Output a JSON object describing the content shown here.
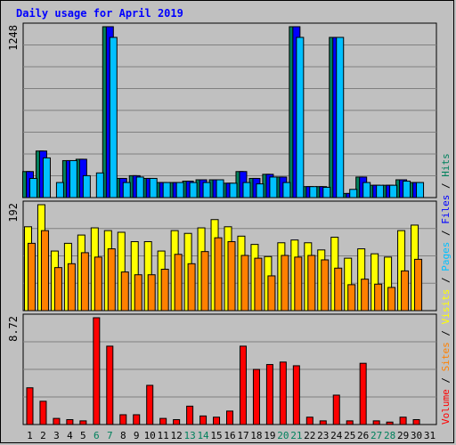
{
  "chart_data": {
    "type": "bar",
    "title": "Daily usage for April 2019",
    "categories": [
      "1",
      "2",
      "3",
      "4",
      "5",
      "6",
      "7",
      "8",
      "9",
      "10",
      "11",
      "12",
      "13",
      "14",
      "15",
      "16",
      "17",
      "18",
      "19",
      "20",
      "21",
      "22",
      "23",
      "24",
      "25",
      "26",
      "27",
      "28",
      "29",
      "30",
      "31"
    ],
    "weekend_days": [
      "6",
      "7",
      "13",
      "14",
      "20",
      "21",
      "27",
      "28"
    ],
    "colors": {
      "hits": "#00805c",
      "files": "#0000ff",
      "pages": "#00c0ff",
      "visits": "#ffff00",
      "sites": "#ff8000",
      "volume": "#ff0000",
      "weekday_label": "#000000",
      "weekend_label": "#00805c",
      "title": "#0000ff"
    },
    "panels": [
      {
        "name": "hits-files-pages",
        "max_label": "1248",
        "ymax": 1248,
        "series": [
          {
            "name": "Hits",
            "values": [
              190,
              340,
              0,
              270,
              280,
              0,
              1248,
              140,
              160,
              140,
              110,
              110,
              120,
              130,
              130,
              105,
              190,
              140,
              170,
              150,
              1248,
              80,
              80,
              1170,
              30,
              150,
              90,
              90,
              130,
              110,
              0
            ]
          },
          {
            "name": "Files",
            "values": [
              190,
              340,
              0,
              270,
              280,
              0,
              1248,
              140,
              160,
              140,
              110,
              110,
              120,
              130,
              130,
              105,
              190,
              140,
              170,
              150,
              1248,
              80,
              80,
              1170,
              30,
              150,
              90,
              90,
              130,
              110,
              0
            ]
          },
          {
            "name": "Pages",
            "values": [
              140,
              290,
              110,
              270,
              160,
              180,
              1170,
              110,
              150,
              140,
              110,
              110,
              110,
              110,
              130,
              105,
              110,
              100,
              150,
              110,
              1170,
              80,
              75,
              1170,
              60,
              110,
              90,
              90,
              120,
              110,
              0
            ]
          }
        ]
      },
      {
        "name": "visits-sites",
        "max_label": "192",
        "ymax": 192,
        "series": [
          {
            "name": "Visits",
            "values": [
              152,
              192,
              108,
              122,
              137,
              150,
              145,
              142,
              125,
              125,
              108,
              145,
              140,
              150,
              165,
              152,
              135,
              120,
              98,
              123,
              128,
              123,
              110,
              133,
              95,
              112,
              103,
              97,
              145,
              155,
              0
            ]
          },
          {
            "name": "Sites",
            "values": [
              122,
              145,
              78,
              85,
              105,
              97,
              112,
              70,
              65,
              65,
              75,
              102,
              85,
              107,
              132,
              125,
              100,
              95,
              63,
              100,
              97,
              100,
              92,
              77,
              47,
              57,
              48,
              42,
              72,
              93,
              0
            ]
          }
        ]
      },
      {
        "name": "volume",
        "max_label": "8.72",
        "ymax": 8.72,
        "series": [
          {
            "name": "Volume",
            "values": [
              3.0,
              1.9,
              0.5,
              0.4,
              0.3,
              8.72,
              6.4,
              0.8,
              0.8,
              3.2,
              0.5,
              0.4,
              1.5,
              0.7,
              0.6,
              1.1,
              6.4,
              4.5,
              4.9,
              5.1,
              4.8,
              0.6,
              0.3,
              2.4,
              0.3,
              5.0,
              0.3,
              0.2,
              0.6,
              0.4,
              0.0
            ]
          }
        ]
      }
    ],
    "legend_right": [
      {
        "text": "Volume",
        "color": "#ff0000"
      },
      {
        "text": " / ",
        "color": "#000000"
      },
      {
        "text": "Sites",
        "color": "#ff8000"
      },
      {
        "text": " / ",
        "color": "#000000"
      },
      {
        "text": "Visits",
        "color": "#ffff00"
      },
      {
        "text": " / ",
        "color": "#000000"
      },
      {
        "text": "Pages",
        "color": "#00c0ff"
      },
      {
        "text": " / ",
        "color": "#000000"
      },
      {
        "text": "Files",
        "color": "#0000ff"
      },
      {
        "text": " / ",
        "color": "#000000"
      },
      {
        "text": "Hits",
        "color": "#00805c"
      }
    ]
  }
}
